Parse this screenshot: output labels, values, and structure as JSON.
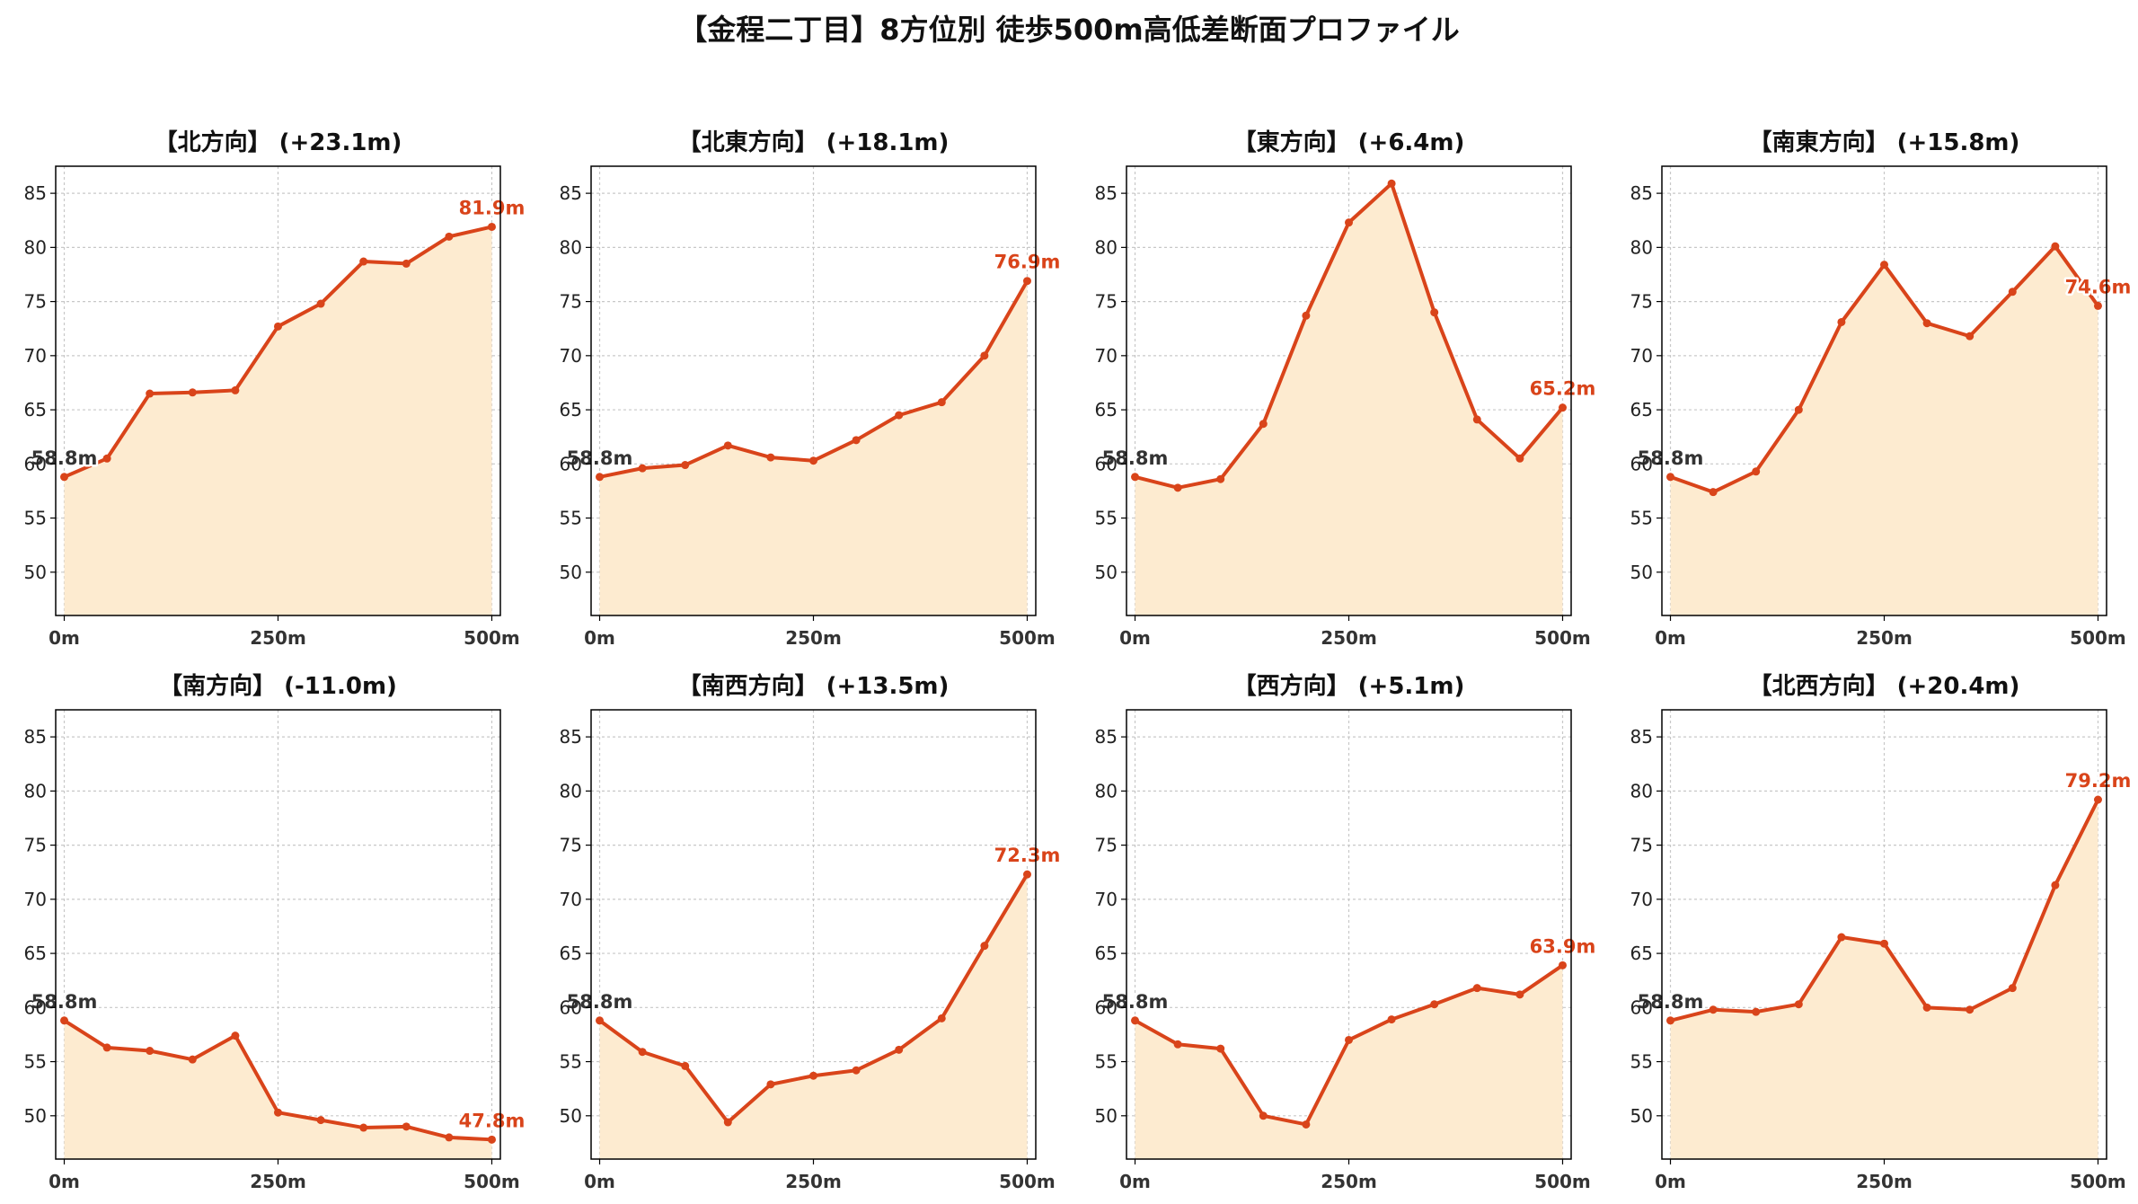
{
  "title": "【金程二丁目】8方位別 徒歩500m高低差断面プロファイル",
  "colors": {
    "line": "#d9441a",
    "fill": "#fdebd0",
    "grid": "#c8c8c8",
    "start_label": "#333333",
    "end_label": "#d9441a"
  },
  "chart_data": [
    {
      "type": "area",
      "title": "【北方向】 (+23.1m)",
      "x": [
        0,
        50,
        100,
        150,
        200,
        250,
        300,
        350,
        400,
        450,
        500
      ],
      "y": [
        58.8,
        60.5,
        66.5,
        66.6,
        66.8,
        72.7,
        74.8,
        78.7,
        78.5,
        81.0,
        81.9
      ],
      "start_label": "58.8m",
      "end_label": "81.9m",
      "xticks": [
        "0m",
        "250m",
        "500m"
      ],
      "yticks": [
        50,
        55,
        60,
        65,
        70,
        75,
        80,
        85
      ],
      "ylim": [
        46,
        87.5
      ],
      "xlim": [
        -10,
        510
      ],
      "grid": true
    },
    {
      "type": "area",
      "title": "【北東方向】 (+18.1m)",
      "x": [
        0,
        50,
        100,
        150,
        200,
        250,
        300,
        350,
        400,
        450,
        500
      ],
      "y": [
        58.8,
        59.6,
        59.9,
        61.7,
        60.6,
        60.3,
        62.2,
        64.5,
        65.7,
        70.0,
        76.9
      ],
      "start_label": "58.8m",
      "end_label": "76.9m",
      "xticks": [
        "0m",
        "250m",
        "500m"
      ],
      "yticks": [
        50,
        55,
        60,
        65,
        70,
        75,
        80,
        85
      ],
      "ylim": [
        46,
        87.5
      ],
      "xlim": [
        -10,
        510
      ],
      "grid": true
    },
    {
      "type": "area",
      "title": "【東方向】 (+6.4m)",
      "x": [
        0,
        50,
        100,
        150,
        200,
        250,
        300,
        350,
        400,
        450,
        500
      ],
      "y": [
        58.8,
        57.8,
        58.6,
        63.7,
        73.7,
        82.3,
        85.9,
        74.0,
        64.1,
        60.5,
        65.2
      ],
      "start_label": "58.8m",
      "end_label": "65.2m",
      "xticks": [
        "0m",
        "250m",
        "500m"
      ],
      "yticks": [
        50,
        55,
        60,
        65,
        70,
        75,
        80,
        85
      ],
      "ylim": [
        46,
        87.5
      ],
      "xlim": [
        -10,
        510
      ],
      "grid": true
    },
    {
      "type": "area",
      "title": "【南東方向】 (+15.8m)",
      "x": [
        0,
        50,
        100,
        150,
        200,
        250,
        300,
        350,
        400,
        450,
        500
      ],
      "y": [
        58.8,
        57.4,
        59.3,
        65.0,
        73.1,
        78.4,
        73.0,
        71.8,
        75.9,
        80.1,
        74.6
      ],
      "start_label": "58.8m",
      "end_label": "74.6m",
      "xticks": [
        "0m",
        "250m",
        "500m"
      ],
      "yticks": [
        50,
        55,
        60,
        65,
        70,
        75,
        80,
        85
      ],
      "ylim": [
        46,
        87.5
      ],
      "xlim": [
        -10,
        510
      ],
      "grid": true
    },
    {
      "type": "area",
      "title": "【南方向】 (-11.0m)",
      "x": [
        0,
        50,
        100,
        150,
        200,
        250,
        300,
        350,
        400,
        450,
        500
      ],
      "y": [
        58.8,
        56.3,
        56.0,
        55.2,
        57.4,
        50.3,
        49.6,
        48.9,
        49.0,
        48.0,
        47.8
      ],
      "start_label": "58.8m",
      "end_label": "47.8m",
      "xticks": [
        "0m",
        "250m",
        "500m"
      ],
      "yticks": [
        50,
        55,
        60,
        65,
        70,
        75,
        80,
        85
      ],
      "ylim": [
        46,
        87.5
      ],
      "xlim": [
        -10,
        510
      ],
      "grid": true
    },
    {
      "type": "area",
      "title": "【南西方向】 (+13.5m)",
      "x": [
        0,
        50,
        100,
        150,
        200,
        250,
        300,
        350,
        400,
        450,
        500
      ],
      "y": [
        58.8,
        55.9,
        54.6,
        49.4,
        52.9,
        53.7,
        54.2,
        56.1,
        59.0,
        65.7,
        72.3
      ],
      "start_label": "58.8m",
      "end_label": "72.3m",
      "xticks": [
        "0m",
        "250m",
        "500m"
      ],
      "yticks": [
        50,
        55,
        60,
        65,
        70,
        75,
        80,
        85
      ],
      "ylim": [
        46,
        87.5
      ],
      "xlim": [
        -10,
        510
      ],
      "grid": true
    },
    {
      "type": "area",
      "title": "【西方向】 (+5.1m)",
      "x": [
        0,
        50,
        100,
        150,
        200,
        250,
        300,
        350,
        400,
        450,
        500
      ],
      "y": [
        58.8,
        56.6,
        56.2,
        50.0,
        49.2,
        57.0,
        58.9,
        60.3,
        61.8,
        61.2,
        63.9
      ],
      "start_label": "58.8m",
      "end_label": "63.9m",
      "xticks": [
        "0m",
        "250m",
        "500m"
      ],
      "yticks": [
        50,
        55,
        60,
        65,
        70,
        75,
        80,
        85
      ],
      "ylim": [
        46,
        87.5
      ],
      "xlim": [
        -10,
        510
      ],
      "grid": true
    },
    {
      "type": "area",
      "title": "【北西方向】 (+20.4m)",
      "x": [
        0,
        50,
        100,
        150,
        200,
        250,
        300,
        350,
        400,
        450,
        500
      ],
      "y": [
        58.8,
        59.8,
        59.6,
        60.3,
        66.5,
        65.9,
        60.0,
        59.8,
        61.8,
        71.3,
        79.2
      ],
      "start_label": "58.8m",
      "end_label": "79.2m",
      "xticks": [
        "0m",
        "250m",
        "500m"
      ],
      "yticks": [
        50,
        55,
        60,
        65,
        70,
        75,
        80,
        85
      ],
      "ylim": [
        46,
        87.5
      ],
      "xlim": [
        -10,
        510
      ],
      "grid": true
    }
  ]
}
